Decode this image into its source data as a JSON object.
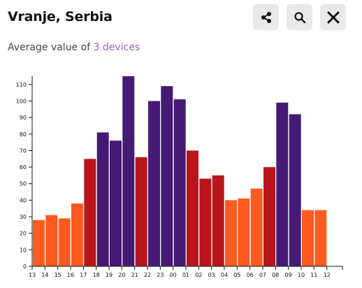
{
  "header": {
    "title": "Vranje, Serbia"
  },
  "subtitle": {
    "prefix": "Average value of ",
    "link_text": "3 devices"
  },
  "icons": {
    "share": "share-icon",
    "search": "search-icon",
    "close": "close-icon"
  },
  "colors": {
    "orange": "#ff5a1f",
    "red": "#b8161c",
    "purple": "#451a75",
    "link": "#8a63c9"
  },
  "chart_data": {
    "type": "bar",
    "title": "",
    "xlabel": "",
    "ylabel": "",
    "ylim": [
      0,
      115
    ],
    "grid": false,
    "categories": [
      "13",
      "14",
      "15",
      "16",
      "17",
      "18",
      "19",
      "20",
      "21",
      "22",
      "23",
      "00",
      "01",
      "02",
      "03",
      "04",
      "05",
      "06",
      "07",
      "08",
      "09",
      "10",
      "11",
      "12"
    ],
    "values": [
      28,
      31,
      29,
      38,
      65,
      81,
      76,
      115,
      66,
      100,
      109,
      101,
      70,
      53,
      55,
      40,
      41,
      47,
      60,
      99,
      92,
      34,
      34,
      null
    ],
    "bar_colors": [
      "orange",
      "orange",
      "orange",
      "orange",
      "red",
      "purple",
      "purple",
      "purple",
      "red",
      "purple",
      "purple",
      "purple",
      "red",
      "red",
      "red",
      "orange",
      "orange",
      "orange",
      "red",
      "purple",
      "purple",
      "orange",
      "orange",
      null
    ],
    "y_ticks": [
      0,
      10,
      20,
      30,
      40,
      50,
      60,
      70,
      80,
      90,
      100,
      110
    ]
  }
}
